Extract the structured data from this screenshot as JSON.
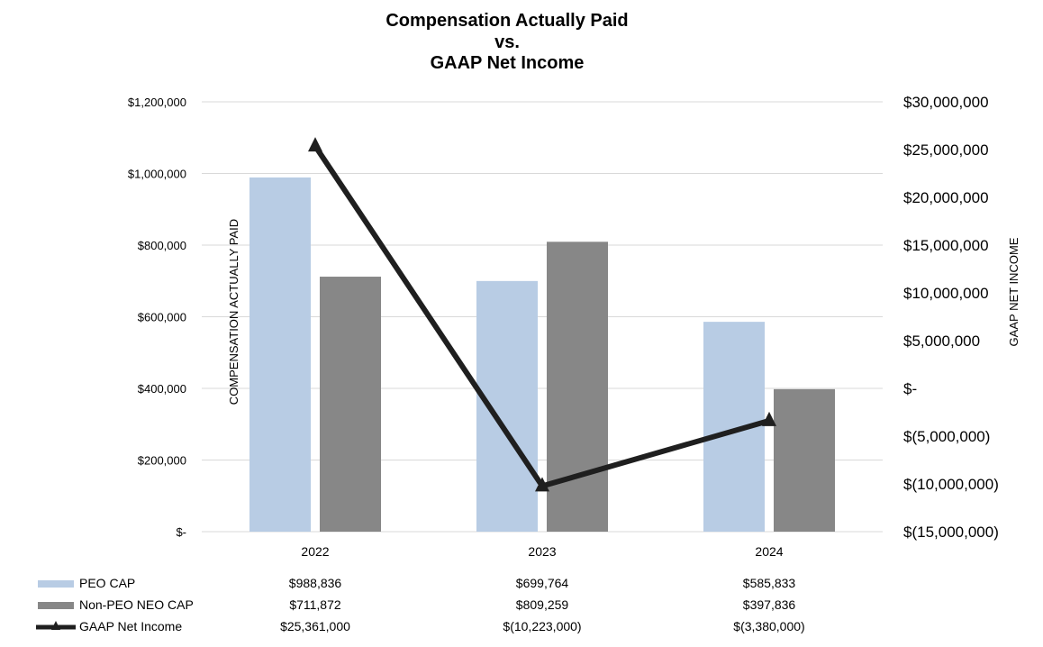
{
  "chart_data": {
    "type": "bar",
    "title": [
      "Compensation Actually Paid",
      "vs.",
      "GAAP Net Income"
    ],
    "categories": [
      "2022",
      "2023",
      "2024"
    ],
    "left_axis": {
      "label": "COMPENSATION ACTUALLY PAID",
      "range": [
        0,
        1200000
      ],
      "ticks": [
        0,
        200000,
        400000,
        600000,
        800000,
        1000000,
        1200000
      ],
      "tick_labels": [
        "$-",
        "$200,000",
        "$400,000",
        "$600,000",
        "$800,000",
        "$1,000,000",
        "$1,200,000"
      ]
    },
    "right_axis": {
      "label": "GAAP NET INCOME",
      "range": [
        -15000000,
        30000000
      ],
      "ticks": [
        -15000000,
        -10000000,
        -5000000,
        0,
        5000000,
        10000000,
        15000000,
        20000000,
        25000000,
        30000000
      ],
      "tick_labels": [
        "$(15,000,000)",
        "$(10,000,000)",
        "$(5,000,000)",
        "$-",
        "$5,000,000",
        "$10,000,000",
        "$15,000,000",
        "$20,000,000",
        "$25,000,000",
        "$30,000,000"
      ]
    },
    "series": [
      {
        "name": "PEO CAP",
        "type": "bar",
        "axis": "left",
        "color": "#b8cce4",
        "values": [
          988836,
          699764,
          585833
        ],
        "value_labels": [
          "$988,836",
          "$699,764",
          "$585,833"
        ]
      },
      {
        "name": "Non-PEO NEO CAP",
        "type": "bar",
        "axis": "left",
        "color": "#878787",
        "values": [
          711872,
          809259,
          397836
        ],
        "value_labels": [
          "$711,872",
          "$809,259",
          "$397,836"
        ]
      },
      {
        "name": "GAAP Net Income",
        "type": "line",
        "axis": "right",
        "color": "#1f1f1f",
        "marker": "triangle",
        "values": [
          25361000,
          -10223000,
          -3380000
        ],
        "value_labels": [
          "$25,361,000",
          "$(10,223,000)",
          "$(3,380,000)"
        ]
      }
    ],
    "grid": true,
    "legend": "bottom data table"
  }
}
